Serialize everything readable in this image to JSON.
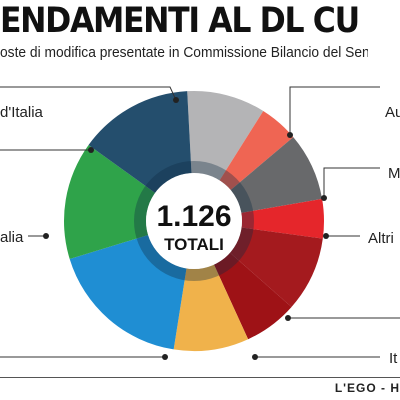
{
  "header": {
    "title": "ENDAMENTI AL DL CURA ITALI",
    "subtitle": "oste di modifica presentate in Commissione Bilancio del Senato"
  },
  "footer": {
    "source": "L'EGO - H"
  },
  "colors": {
    "center_text": "#111111",
    "leader_lines": "#333333",
    "inner_ring": "#ffffff"
  },
  "chart_data": {
    "type": "pie",
    "style": "donut",
    "center_value": "1.126",
    "center_label": "TOTALI",
    "legend": "none",
    "slices": [
      {
        "label": "Au",
        "value": 110,
        "color": "#b4b4b6"
      },
      {
        "label": "M",
        "value": 55,
        "color": "#ef6553"
      },
      {
        "label": "Altri",
        "value": 95,
        "color": "#68696b"
      },
      {
        "label": "",
        "value": 55,
        "color": "#e5262b"
      },
      {
        "label": "It",
        "value": 105,
        "color": "#a41a1e"
      },
      {
        "label": "",
        "value": 75,
        "color": "#9e1216"
      },
      {
        "label": "",
        "value": 105,
        "color": "#f0b24b"
      },
      {
        "label": "alia",
        "value": 200,
        "color": "#1f8ed3"
      },
      {
        "label": "",
        "value": 165,
        "color": "#2fa34a"
      },
      {
        "label": "d'Italia",
        "value": 160,
        "color": "#244e6d"
      }
    ]
  }
}
